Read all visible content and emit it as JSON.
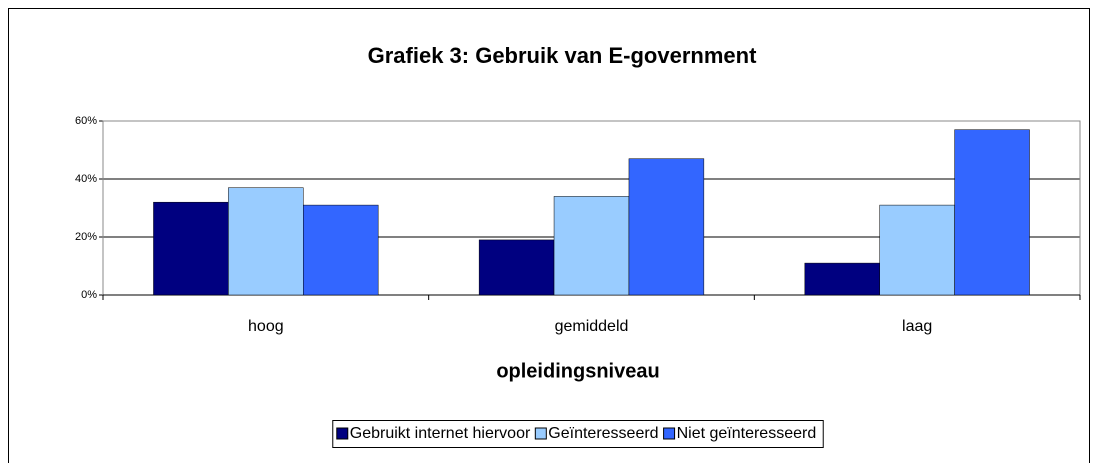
{
  "chart_data": {
    "type": "bar",
    "title": "Grafiek 3: Gebruik van E-government",
    "x_label": "opleidingsniveau",
    "categories": [
      "hoog",
      "gemiddeld",
      "laag"
    ],
    "series": [
      {
        "name": "Gebruikt internet hiervoor",
        "color": "#000080",
        "values": [
          32,
          19,
          11
        ]
      },
      {
        "name": "Geïnteresseerd",
        "color": "#99ccff",
        "values": [
          37,
          34,
          31
        ]
      },
      {
        "name": "Niet geïnteresseerd",
        "color": "#3366ff",
        "values": [
          31,
          47,
          57
        ]
      }
    ],
    "ylim": [
      0,
      60
    ],
    "yticks": [
      {
        "value": 0,
        "label": "0%"
      },
      {
        "value": 20,
        "label": "20%"
      },
      {
        "value": 40,
        "label": "40%"
      },
      {
        "value": 60,
        "label": "60%"
      }
    ],
    "grid": true,
    "legend": "bottom"
  }
}
